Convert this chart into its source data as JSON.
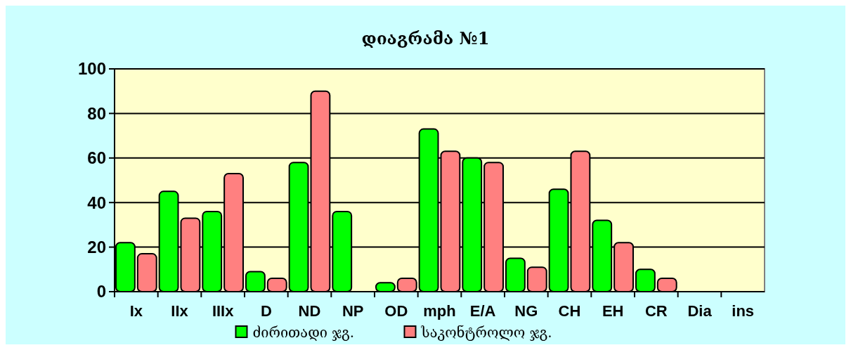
{
  "chart_data": {
    "type": "bar",
    "title": "დიაგრამა №1",
    "categories": [
      "Ix",
      "IIx",
      "IIIx",
      "D",
      "ND",
      "NP",
      "OD",
      "mph",
      "E/A",
      "NG",
      "CH",
      "EH",
      "CR",
      "Dia",
      "ins"
    ],
    "series": [
      {
        "name": "ძირითადი ჯგ.",
        "color": "#00ff00",
        "values": [
          22,
          45,
          36,
          9,
          58,
          36,
          4,
          73,
          60,
          15,
          46,
          32,
          10,
          null,
          null
        ]
      },
      {
        "name": "საკონტროლო ჯგ.",
        "color": "#ff8080",
        "values": [
          17,
          33,
          53,
          6,
          90,
          null,
          6,
          63,
          58,
          11,
          63,
          22,
          6,
          null,
          null
        ]
      }
    ],
    "ylim": [
      0,
      100
    ],
    "yticks": [
      0,
      20,
      40,
      60,
      80,
      100
    ],
    "grid": "y",
    "legend": "bottom"
  }
}
